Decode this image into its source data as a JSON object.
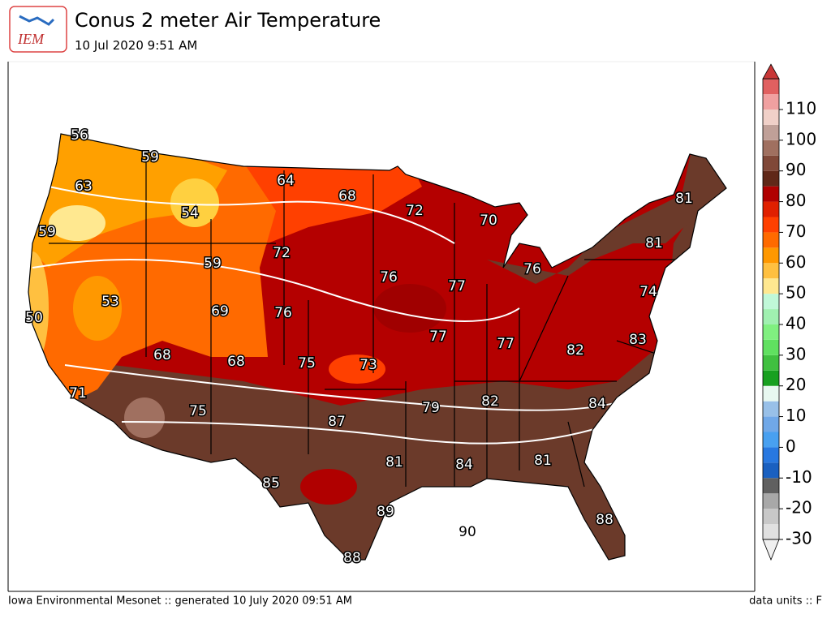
{
  "header": {
    "logo": "IEM",
    "title": "Conus 2 meter Air Temperature",
    "subtitle": "10 Jul 2020 9:51 AM"
  },
  "map": {
    "labels": [
      56,
      59,
      63,
      64,
      68,
      54,
      72,
      70,
      59,
      72,
      59,
      81,
      81,
      76,
      77,
      76,
      50,
      53,
      69,
      76,
      74,
      77,
      68,
      68,
      75,
      73,
      77,
      82,
      83,
      71,
      75,
      87,
      79,
      82,
      84,
      81,
      84,
      81,
      85,
      89,
      90,
      88,
      88
    ]
  },
  "colorbar": {
    "ticks": [
      -30,
      -20,
      -10,
      0,
      10,
      20,
      30,
      40,
      50,
      60,
      70,
      80,
      90,
      100,
      110
    ],
    "colors": [
      "#e0e0e0",
      "#c8c8c8",
      "#a8a8a8",
      "#606060",
      "#1a60c0",
      "#2878e0",
      "#48a0f0",
      "#70a8e8",
      "#98c0e8",
      "#e8f8f0",
      "#18a020",
      "#40c040",
      "#60e060",
      "#80f080",
      "#a0f0b0",
      "#c0f8d8",
      "#ffe890",
      "#ffc040",
      "#ff9800",
      "#ff6a00",
      "#ff4000",
      "#e02000",
      "#b00000",
      "#602818",
      "#804838",
      "#a07060",
      "#c0a098",
      "#f0d0c8",
      "#f0a0a0",
      "#e06060"
    ],
    "over_color": "#c83737",
    "under_color": "#f0f0f0"
  },
  "footer": {
    "left": "Iowa Environmental Mesonet :: generated 10 July 2020 09:51 AM",
    "right": "data units :: F"
  }
}
